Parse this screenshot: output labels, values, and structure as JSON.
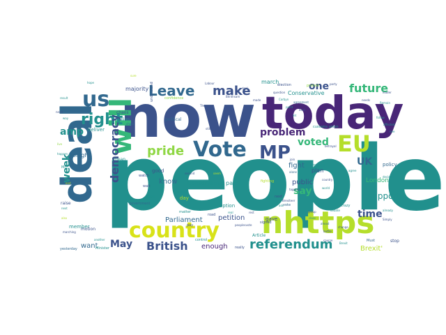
{
  "palette": {
    "deep_purple": "#46176a",
    "purple": "#482677",
    "indigo": "#3b528b",
    "blue": "#31688e",
    "teal": "#21908d",
    "green": "#35b779",
    "lime": "#8fd744",
    "yellow": "#b5de2b",
    "yellow_bright": "#d8e219"
  },
  "words": [
    {
      "text": "people",
      "color": "teal"
    },
    {
      "text": "now",
      "color": "indigo"
    },
    {
      "text": "today",
      "color": "purple"
    },
    {
      "text": "deal",
      "color": "blue"
    },
    {
      "text": "nhttps",
      "color": "yellow"
    },
    {
      "text": "Vote",
      "color": "blue"
    },
    {
      "text": "MP",
      "color": "indigo"
    },
    {
      "text": "country",
      "color": "yellow_bright"
    },
    {
      "text": "EU",
      "color": "yellow"
    },
    {
      "text": "will",
      "color": "green"
    },
    {
      "text": "us",
      "color": "blue"
    },
    {
      "text": "right",
      "color": "teal"
    },
    {
      "text": "Leave",
      "color": "blue"
    },
    {
      "text": "make",
      "color": "indigo"
    },
    {
      "text": "referendum",
      "color": "teal"
    },
    {
      "text": "pride",
      "color": "lime"
    },
    {
      "text": "future",
      "color": "green"
    },
    {
      "text": "British",
      "color": "indigo"
    },
    {
      "text": "democracy",
      "color": "indigo"
    },
    {
      "text": "UK",
      "color": "blue"
    },
    {
      "text": "one",
      "color": "indigo"
    },
    {
      "text": "problem",
      "color": "purple"
    },
    {
      "text": "voted",
      "color": "green"
    },
    {
      "text": "amp",
      "color": "teal"
    },
    {
      "text": "May",
      "color": "indigo"
    },
    {
      "text": "say",
      "color": "green"
    },
    {
      "text": "time",
      "color": "indigo"
    },
    {
      "text": "week",
      "color": "teal"
    },
    {
      "text": "support",
      "color": "teal"
    },
    {
      "text": "Parliament",
      "color": "blue"
    },
    {
      "text": "petition",
      "color": "indigo"
    },
    {
      "text": "public",
      "color": "indigo"
    },
    {
      "text": "fight",
      "color": "blue"
    },
    {
      "text": "want",
      "color": "blue"
    },
    {
      "text": "enough",
      "color": "purple"
    },
    {
      "text": "know",
      "color": "blue"
    },
    {
      "text": "Brexit'",
      "color": "yellow"
    },
    {
      "text": "London",
      "color": "green"
    },
    {
      "text": "Conservative party",
      "color": "teal"
    },
    {
      "text": "Conservative",
      "color": "teal"
    },
    {
      "text": "march",
      "color": "teal"
    },
    {
      "text": "plan",
      "color": "indigo"
    },
    {
      "text": "tonight",
      "color": "blue"
    },
    {
      "text": "deliver",
      "color": "teal"
    },
    {
      "text": "majority",
      "color": "indigo"
    },
    {
      "text": "member",
      "color": "teal"
    },
    {
      "text": "good",
      "color": "indigo"
    },
    {
      "text": "option",
      "color": "teal"
    },
    {
      "text": "day",
      "color": "yellow"
    },
    {
      "text": "gave",
      "color": "indigo"
    },
    {
      "text": "policy",
      "color": "blue"
    },
    {
      "text": "stop",
      "color": "indigo"
    },
    {
      "text": "mean",
      "color": "teal"
    },
    {
      "text": "political",
      "color": "blue"
    },
    {
      "text": "million",
      "color": "teal"
    },
    {
      "text": "chaos",
      "color": "indigo"
    },
    {
      "text": "Article",
      "color": "teal"
    },
    {
      "text": "election",
      "color": "indigo"
    },
    {
      "text": "raise",
      "color": "indigo"
    },
    {
      "text": "Thank",
      "color": "teal"
    },
    {
      "text": "motion",
      "color": "indigo"
    },
    {
      "text": "signed",
      "color": "indigo"
    },
    {
      "text": "Minister",
      "color": "teal"
    },
    {
      "text": "yesterday",
      "color": "blue"
    },
    {
      "text": "Mr",
      "color": "teal"
    },
    {
      "text": "road",
      "color": "indigo"
    },
    {
      "text": "vote",
      "color": "blue"
    },
    {
      "text": "next",
      "color": "indigo"
    },
    {
      "text": "clear",
      "color": "teal"
    },
    {
      "text": "wait",
      "color": "indigo"
    },
    {
      "text": "control",
      "color": "teal"
    },
    {
      "text": "really",
      "color": "indigo"
    },
    {
      "text": "matter",
      "color": "teal"
    },
    {
      "text": "government",
      "color": "blue"
    },
    {
      "text": "reason",
      "color": "teal"
    },
    {
      "text": "pay",
      "color": "indigo"
    },
    {
      "text": "Must",
      "color": "blue"
    },
    {
      "text": "understand",
      "color": "indigo"
    },
    {
      "text": "confidence",
      "color": "lime"
    },
    {
      "text": "fighting",
      "color": "yellow"
    },
    {
      "text": "customs union",
      "color": "teal"
    },
    {
      "text": "Theresa",
      "color": "indigo"
    },
    {
      "text": "Corbyn",
      "color": "teal"
    },
    {
      "text": "question",
      "color": "indigo"
    },
    {
      "text": "agreement",
      "color": "blue"
    },
    {
      "text": "deal",
      "color": "indigo"
    },
    {
      "text": "Labour",
      "color": "indigo"
    },
    {
      "text": "protest",
      "color": "lime"
    },
    {
      "text": "party",
      "color": "indigo"
    },
    {
      "text": "Remain",
      "color": "teal"
    },
    {
      "text": "Simply",
      "color": "indigo"
    },
    {
      "text": "already",
      "color": "teal"
    },
    {
      "text": "leader",
      "color": "indigo"
    },
    {
      "text": "ahead",
      "color": "blue"
    },
    {
      "text": "battle",
      "color": "indigo"
    },
    {
      "text": "hope",
      "color": "teal"
    },
    {
      "text": "also",
      "color": "yellow"
    },
    {
      "text": "result",
      "color": "teal"
    },
    {
      "text": "live",
      "color": "lime"
    },
    {
      "text": "need",
      "color": "indigo"
    },
    {
      "text": "happen",
      "color": "teal"
    },
    {
      "text": "end",
      "color": "yellow"
    },
    {
      "text": "next",
      "color": "teal"
    },
    {
      "text": "watch",
      "color": "indigo"
    },
    {
      "text": "second",
      "color": "indigo"
    },
    {
      "text": "seem",
      "color": "yellow"
    },
    {
      "text": "another",
      "color": "teal"
    },
    {
      "text": "debate",
      "color": "teal"
    },
    {
      "text": "crazy",
      "color": "teal"
    },
    {
      "text": "rest",
      "color": "indigo"
    },
    {
      "text": "class",
      "color": "teal"
    },
    {
      "text": "course",
      "color": "indigo"
    },
    {
      "text": "Brexit",
      "color": "teal"
    },
    {
      "text": "Benthsam",
      "color": "indigo"
    },
    {
      "text": "agree",
      "color": "teal"
    },
    {
      "text": "chaos",
      "color": "blue"
    },
    {
      "text": "join",
      "color": "indigo"
    },
    {
      "text": "world",
      "color": "teal"
    },
    {
      "text": "country",
      "color": "indigo"
    },
    {
      "text": "Brexiteer",
      "color": "indigo"
    },
    {
      "text": "decision",
      "color": "teal"
    },
    {
      "text": "together",
      "color": "indigo"
    },
    {
      "text": "alone",
      "color": "blue"
    },
    {
      "text": "real",
      "color": "teal"
    },
    {
      "text": "marching",
      "color": "indigo"
    },
    {
      "text": "sure",
      "color": "yellow"
    },
    {
      "text": "way",
      "color": "teal"
    },
    {
      "text": "made",
      "color": "indigo"
    },
    {
      "text": "point",
      "color": "teal"
    },
    {
      "text": "group",
      "color": "indigo"
    },
    {
      "text": "follow",
      "color": "teal"
    },
    {
      "text": "betrayal",
      "color": "indigo"
    },
    {
      "text": "affected",
      "color": "teal"
    },
    {
      "text": "needs",
      "color": "indigo"
    },
    {
      "text": "nee",
      "color": "teal"
    },
    {
      "text": "peoplesvote",
      "color": "indigo"
    },
    {
      "text": "ask",
      "color": "teal"
    },
    {
      "text": "back",
      "color": "indigo"
    },
    {
      "text": "let",
      "color": "teal"
    },
    {
      "text": "change",
      "color": "indigo"
    },
    {
      "text": "still",
      "color": "indigo"
    }
  ]
}
